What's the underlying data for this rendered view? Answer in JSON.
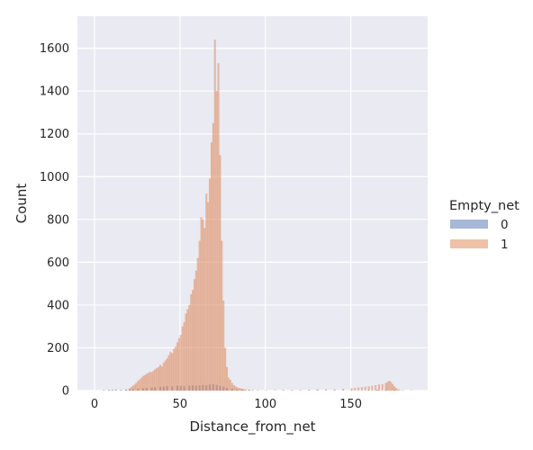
{
  "chart_data": {
    "type": "bar",
    "subtype": "histogram",
    "xlabel": "Distance_from_net",
    "ylabel": "Count",
    "xlim": [
      -10,
      195
    ],
    "ylim": [
      0,
      1750
    ],
    "xticks": [
      0,
      50,
      100,
      150
    ],
    "yticks": [
      0,
      200,
      400,
      600,
      800,
      1000,
      1200,
      1400,
      1600
    ],
    "grid": true,
    "legend": {
      "title": "Empty_net",
      "placement": "right"
    },
    "bin_width": 1,
    "colors": {
      "0": "#4c72b0",
      "1": "#dd8452",
      "background": "#eaeaf2",
      "grid": "#ffffff"
    },
    "series": [
      {
        "name": "0",
        "bins": [
          [
            5,
            2
          ],
          [
            8,
            3
          ],
          [
            10,
            3
          ],
          [
            12,
            4
          ],
          [
            15,
            3
          ],
          [
            18,
            3
          ],
          [
            20,
            5
          ],
          [
            22,
            6
          ],
          [
            25,
            8
          ],
          [
            28,
            10
          ],
          [
            30,
            12
          ],
          [
            33,
            14
          ],
          [
            35,
            16
          ],
          [
            38,
            18
          ],
          [
            40,
            18
          ],
          [
            42,
            20
          ],
          [
            45,
            20
          ],
          [
            48,
            22
          ],
          [
            50,
            22
          ],
          [
            52,
            20
          ],
          [
            55,
            22
          ],
          [
            57,
            24
          ],
          [
            59,
            22
          ],
          [
            61,
            24
          ],
          [
            63,
            26
          ],
          [
            65,
            25
          ],
          [
            67,
            28
          ],
          [
            69,
            30
          ],
          [
            71,
            26
          ],
          [
            73,
            22
          ],
          [
            75,
            18
          ],
          [
            77,
            12
          ],
          [
            80,
            8
          ],
          [
            83,
            5
          ],
          [
            86,
            3
          ],
          [
            90,
            2
          ],
          [
            110,
            1
          ],
          [
            130,
            1
          ],
          [
            150,
            1
          ],
          [
            160,
            2
          ],
          [
            165,
            3
          ],
          [
            170,
            3
          ],
          [
            175,
            2
          ]
        ]
      },
      {
        "name": "1",
        "bins": [
          [
            18,
            5
          ],
          [
            20,
            10
          ],
          [
            21,
            16
          ],
          [
            22,
            22
          ],
          [
            23,
            28
          ],
          [
            24,
            36
          ],
          [
            25,
            45
          ],
          [
            26,
            52
          ],
          [
            27,
            60
          ],
          [
            28,
            68
          ],
          [
            29,
            72
          ],
          [
            30,
            78
          ],
          [
            31,
            82
          ],
          [
            32,
            88
          ],
          [
            33,
            85
          ],
          [
            34,
            92
          ],
          [
            35,
            100
          ],
          [
            36,
            105
          ],
          [
            37,
            110
          ],
          [
            38,
            120
          ],
          [
            39,
            112
          ],
          [
            40,
            130
          ],
          [
            41,
            140
          ],
          [
            42,
            150
          ],
          [
            43,
            165
          ],
          [
            44,
            180
          ],
          [
            45,
            175
          ],
          [
            46,
            195
          ],
          [
            47,
            205
          ],
          [
            48,
            225
          ],
          [
            49,
            245
          ],
          [
            50,
            260
          ],
          [
            51,
            300
          ],
          [
            52,
            320
          ],
          [
            53,
            360
          ],
          [
            54,
            380
          ],
          [
            55,
            400
          ],
          [
            56,
            450
          ],
          [
            57,
            470
          ],
          [
            58,
            520
          ],
          [
            59,
            560
          ],
          [
            60,
            620
          ],
          [
            61,
            700
          ],
          [
            62,
            810
          ],
          [
            63,
            800
          ],
          [
            64,
            760
          ],
          [
            65,
            920
          ],
          [
            66,
            880
          ],
          [
            67,
            990
          ],
          [
            68,
            1160
          ],
          [
            69,
            1250
          ],
          [
            70,
            1640
          ],
          [
            71,
            1400
          ],
          [
            72,
            1530
          ],
          [
            73,
            1100
          ],
          [
            74,
            700
          ],
          [
            75,
            420
          ],
          [
            76,
            200
          ],
          [
            77,
            110
          ],
          [
            78,
            60
          ],
          [
            79,
            50
          ],
          [
            80,
            35
          ],
          [
            81,
            25
          ],
          [
            82,
            20
          ],
          [
            83,
            15
          ],
          [
            84,
            12
          ],
          [
            85,
            10
          ],
          [
            86,
            8
          ],
          [
            87,
            6
          ],
          [
            88,
            5
          ],
          [
            90,
            4
          ],
          [
            92,
            3
          ],
          [
            95,
            2
          ],
          [
            100,
            2
          ],
          [
            105,
            2
          ],
          [
            110,
            2
          ],
          [
            115,
            3
          ],
          [
            120,
            3
          ],
          [
            125,
            4
          ],
          [
            130,
            5
          ],
          [
            135,
            6
          ],
          [
            140,
            6
          ],
          [
            145,
            8
          ],
          [
            150,
            10
          ],
          [
            152,
            12
          ],
          [
            154,
            14
          ],
          [
            156,
            16
          ],
          [
            158,
            18
          ],
          [
            160,
            20
          ],
          [
            162,
            22
          ],
          [
            164,
            25
          ],
          [
            166,
            28
          ],
          [
            168,
            30
          ],
          [
            170,
            35
          ],
          [
            171,
            40
          ],
          [
            172,
            45
          ],
          [
            173,
            40
          ],
          [
            174,
            30
          ],
          [
            175,
            20
          ],
          [
            176,
            12
          ],
          [
            177,
            6
          ],
          [
            178,
            3
          ],
          [
            180,
            2
          ],
          [
            185,
            1
          ]
        ]
      }
    ]
  }
}
